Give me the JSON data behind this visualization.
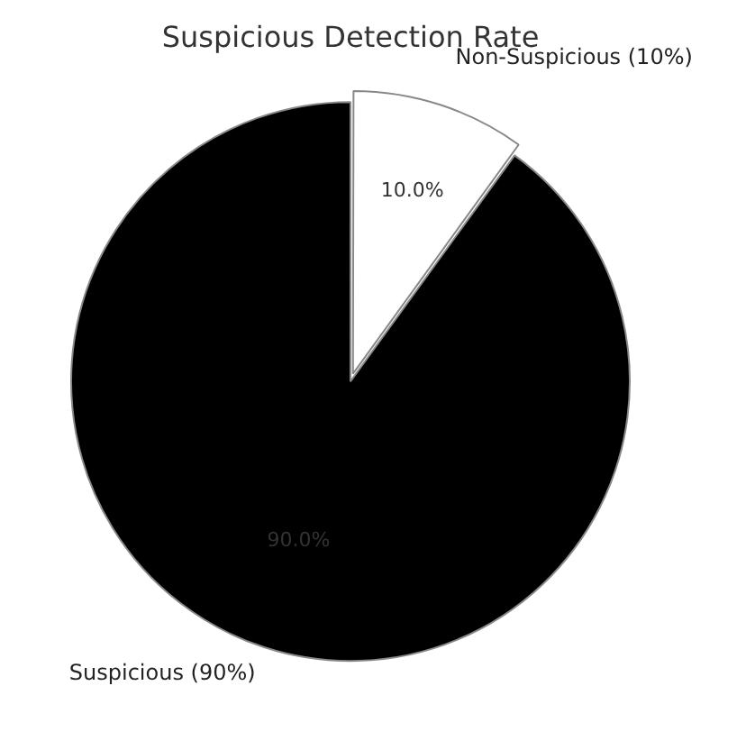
{
  "chart_data": {
    "type": "pie",
    "title": "Suspicious Detection Rate",
    "categories": [
      "Non-Suspicious (10%)",
      "Suspicious (90%)"
    ],
    "values": [
      10,
      90
    ],
    "colors": [
      "#ffffff",
      "#000000"
    ],
    "value_labels": [
      "10.0%",
      "90.0%"
    ]
  }
}
